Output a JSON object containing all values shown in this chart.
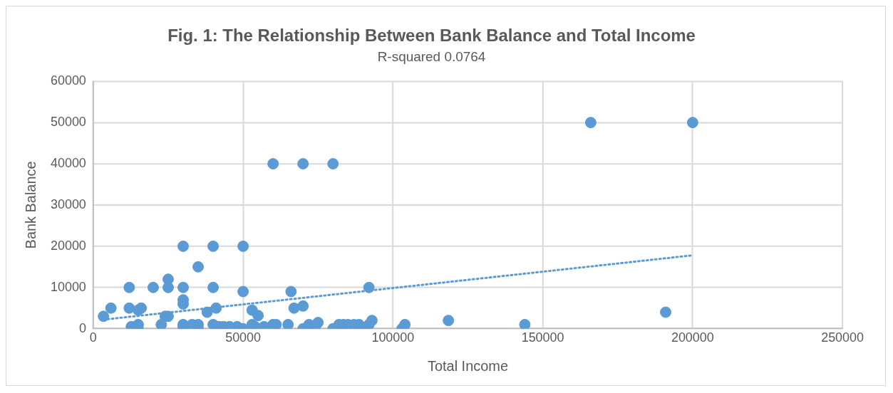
{
  "chart_data": {
    "type": "scatter",
    "title": "Fig. 1: The Relationship Between Bank Balance and Total Income",
    "subtitle": "R-squared 0.0764",
    "xlabel": "Total Income",
    "ylabel": "Bank Balance",
    "xlim": [
      0,
      250000
    ],
    "xticks": [
      0,
      50000,
      100000,
      150000,
      200000,
      250000
    ],
    "ylim": [
      0,
      60000
    ],
    "yticks": [
      0,
      10000,
      20000,
      30000,
      40000,
      50000,
      60000
    ],
    "grid": true,
    "legend": false,
    "marker": "circle",
    "series": [
      {
        "color": "#5b9bd5",
        "x": [
          3400,
          5900,
          12000,
          12000,
          12700,
          15000,
          16000,
          15000,
          15000,
          20000,
          22700,
          24000,
          25000,
          25000,
          25000,
          30000,
          30000,
          30000,
          30000,
          30000,
          30000,
          33000,
          35000,
          35000,
          35000,
          38000,
          40000,
          40000,
          41000,
          40000,
          42000,
          43500,
          45500,
          48000,
          50000,
          50000,
          50000,
          53000,
          53000,
          55000,
          54000,
          57000,
          60000,
          60000,
          61000,
          65000,
          66000,
          67000,
          70000,
          70000,
          70000,
          72000,
          74000,
          75000,
          80000,
          80000,
          82000,
          83500,
          85000,
          87000,
          88700,
          90000,
          92000,
          92000,
          93000,
          103000,
          104000,
          118500,
          144000,
          166000,
          191000,
          200000
        ],
        "values": [
          3000,
          5000,
          10000,
          5000,
          500,
          4500,
          5000,
          1000,
          0,
          10000,
          1000,
          3000,
          3000,
          12000,
          10000,
          20000,
          10000,
          7000,
          6000,
          1000,
          500,
          1000,
          1000,
          15000,
          0,
          4000,
          10000,
          20000,
          5000,
          1000,
          500,
          500,
          500,
          500,
          20000,
          9000,
          0,
          1000,
          4500,
          3200,
          500,
          500,
          40000,
          1000,
          1000,
          1000,
          9000,
          5000,
          5500,
          40000,
          0,
          1000,
          500,
          1500,
          40000,
          0,
          1000,
          1000,
          1000,
          1000,
          1000,
          0,
          1000,
          10000,
          2000,
          0,
          1000,
          2000,
          1000,
          50000,
          4000,
          50000
        ]
      },
      {
        "type": "line",
        "color": "#5b9bd5",
        "line_style": "dotted",
        "marker": "none",
        "x": [
          3400,
          200000
        ],
        "values": [
          2200,
          17800
        ]
      }
    ]
  }
}
